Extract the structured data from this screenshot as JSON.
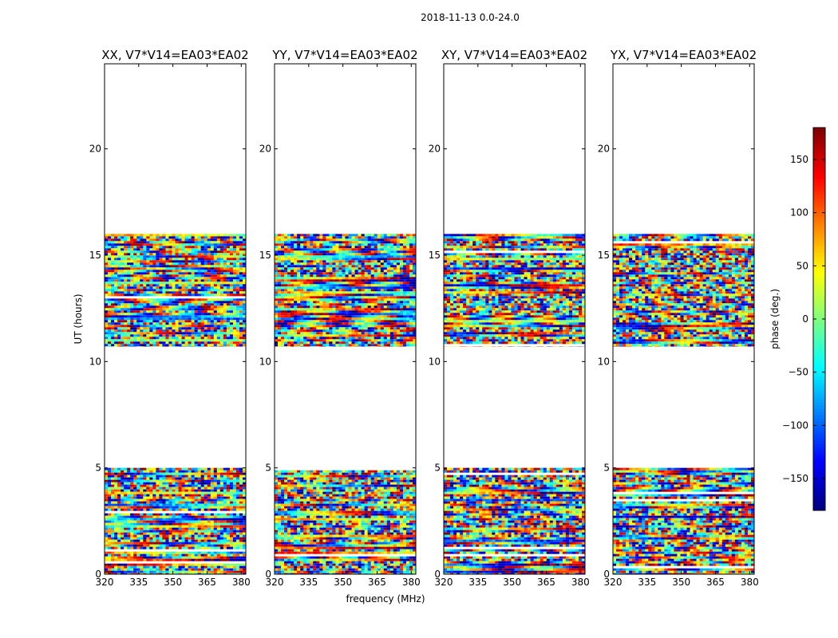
{
  "chart_data": {
    "type": "heatmap",
    "suptitle": "2018-11-13 0.0-24.0",
    "xlabel": "frequency (MHz)",
    "ylabel": "UT (hours)",
    "xlim": [
      320,
      382
    ],
    "ylim": [
      0,
      24
    ],
    "x_ticks": [
      320,
      335,
      350,
      365,
      380
    ],
    "y_ticks": [
      0,
      5,
      10,
      15,
      20
    ],
    "colormap": "jet",
    "colorbar": {
      "label": "phase (deg.)",
      "range": [
        -180,
        180
      ],
      "ticks": [
        -150,
        -100,
        -50,
        0,
        50,
        100,
        150
      ],
      "tick_labels": [
        "−150",
        "−100",
        "−50",
        "0",
        "50",
        "100",
        "150"
      ]
    },
    "data_time_ranges": [
      [
        0,
        5
      ],
      [
        10.7,
        16
      ]
    ],
    "panels": [
      {
        "title": "XX, V7*V14=EA03*EA02",
        "pol": "XX"
      },
      {
        "title": "YY, V7*V14=EA03*EA02",
        "pol": "YY"
      },
      {
        "title": "XY, V7*V14=EA03*EA02",
        "pol": "XY"
      },
      {
        "title": "YX, V7*V14=EA03*EA02",
        "pol": "YX"
      }
    ]
  }
}
